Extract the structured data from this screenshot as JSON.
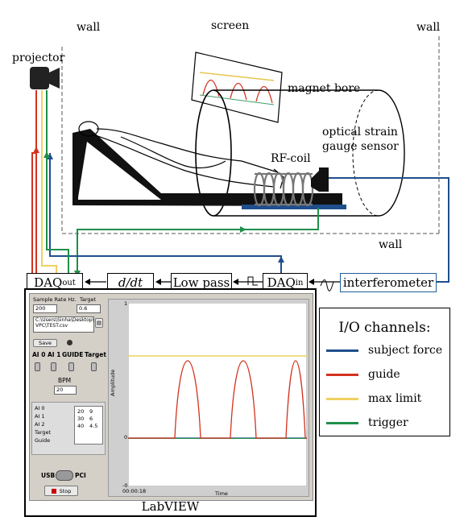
{
  "labels": {
    "wall_left": "wall",
    "wall_right": "wall",
    "wall_bottom": "wall",
    "screen": "screen",
    "projector": "projector",
    "magnet_bore": "magnet bore",
    "optical_sensor_line1": "optical strain",
    "optical_sensor_line2": "gauge sensor",
    "rf_coil": "RF-coil"
  },
  "blocks": {
    "daq_out_main": "DAQ",
    "daq_out_sub": "out",
    "derivative": "d/dt",
    "low_pass": "Low pass",
    "daq_in_main": "DAQ",
    "daq_in_sub": "in",
    "interferometer": "interferometer"
  },
  "labview": {
    "caption": "LabVIEW",
    "sample_rate_label": "Sample Rate Hz.",
    "target_label": "Target",
    "sample_rate_value": "200",
    "target_value": "0.6",
    "file_path_line1": "C:\\Users\\Sinha\\Desktop\\",
    "file_path_line2": "VPC\\TEST.csv",
    "save_label": "Save",
    "channel_labels": [
      "AI 0",
      "AI 1",
      "GUIDE",
      "Target"
    ],
    "bpm_label": "BPM",
    "bpm_value": "20",
    "legend_items": [
      "AI 0",
      "AI 1",
      "AI 2",
      "Target",
      "Guide"
    ],
    "table_rows": [
      [
        "20",
        "9"
      ],
      [
        "30",
        "6"
      ],
      [
        "40",
        "4.5"
      ]
    ],
    "usb_label": "USB",
    "pci_label": "PCI",
    "stop_label": "Stop",
    "plot": {
      "y_axis_label": "Amplitude",
      "x_axis_label": "Time",
      "y_top_tick": "1",
      "y_mid_tick": "0",
      "y_bottom_tick": "-0",
      "x_start_tick": "00:00:18"
    }
  },
  "io_legend": {
    "title": "I/O channels:",
    "items": [
      {
        "label": "subject force",
        "color": "#1f4e8c"
      },
      {
        "label": "guide",
        "color": "#d3321f"
      },
      {
        "label": "max limit",
        "color": "#f0d060"
      },
      {
        "label": "trigger",
        "color": "#1f8f4a"
      }
    ]
  }
}
